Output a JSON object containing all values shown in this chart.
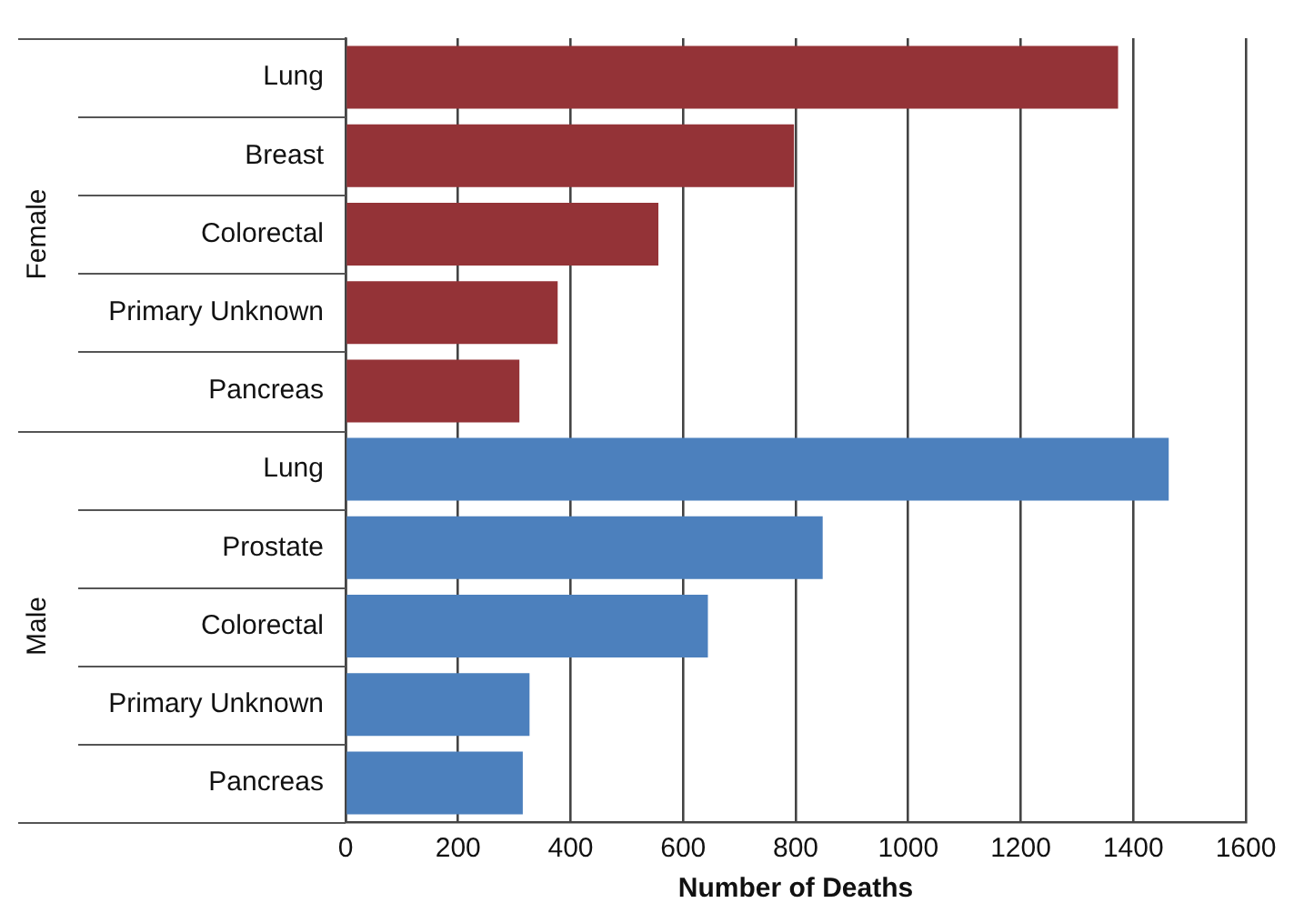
{
  "chart_data": {
    "type": "bar",
    "orientation": "horizontal",
    "xlabel": "Number of Deaths",
    "categories": [
      "Lung",
      "Breast",
      "Colorectal",
      "Primary Unknown",
      "Pancreas",
      "Lung",
      "Prostate",
      "Colorectal",
      "Primary Unknown",
      "Pancreas"
    ],
    "series": [
      {
        "name": "Female",
        "color": "#943337",
        "values": [
          1373,
          797,
          556,
          377,
          309,
          null,
          null,
          null,
          null,
          null
        ]
      },
      {
        "name": "Male",
        "color": "#4c80bd",
        "values": [
          null,
          null,
          null,
          null,
          null,
          1463,
          848,
          644,
          327,
          315
        ]
      }
    ],
    "xlim": [
      0,
      1600
    ],
    "xticks": [
      0,
      200,
      400,
      600,
      800,
      1000,
      1200,
      1400,
      1600
    ],
    "grid": "x",
    "legend": false
  }
}
